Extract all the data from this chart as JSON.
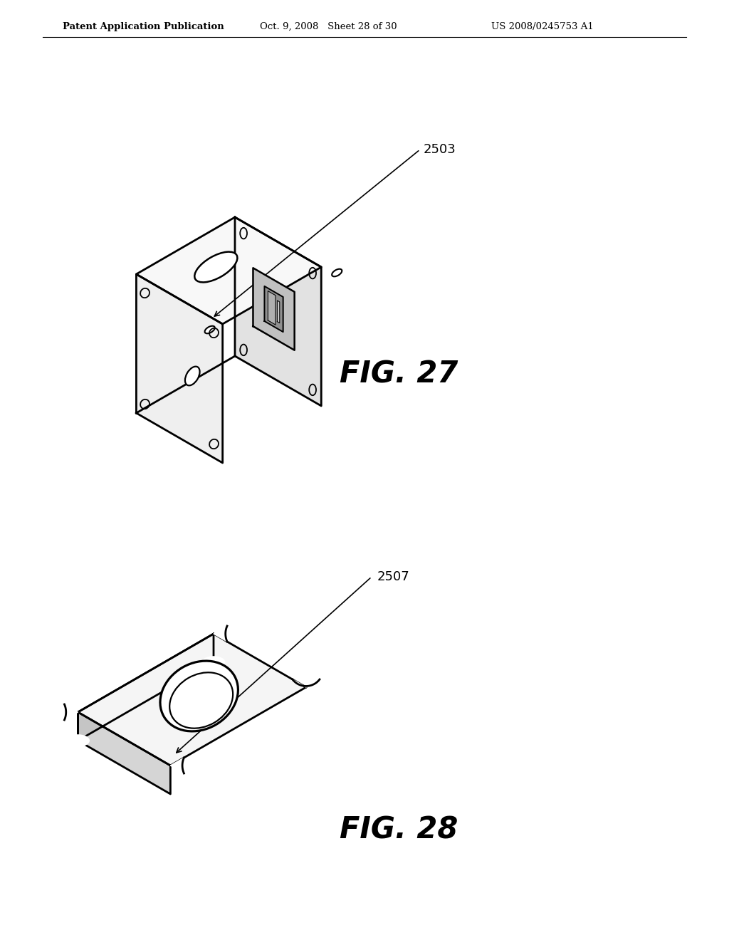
{
  "background_color": "#ffffff",
  "header_left": "Patent Application Publication",
  "header_center": "Oct. 9, 2008   Sheet 28 of 30",
  "header_right": "US 2008/0245753 A1",
  "fig27_label": "FIG. 27",
  "fig28_label": "FIG. 28",
  "ref_2503": "2503",
  "ref_2507": "2507",
  "line_color": "#000000",
  "line_width": 1.8
}
